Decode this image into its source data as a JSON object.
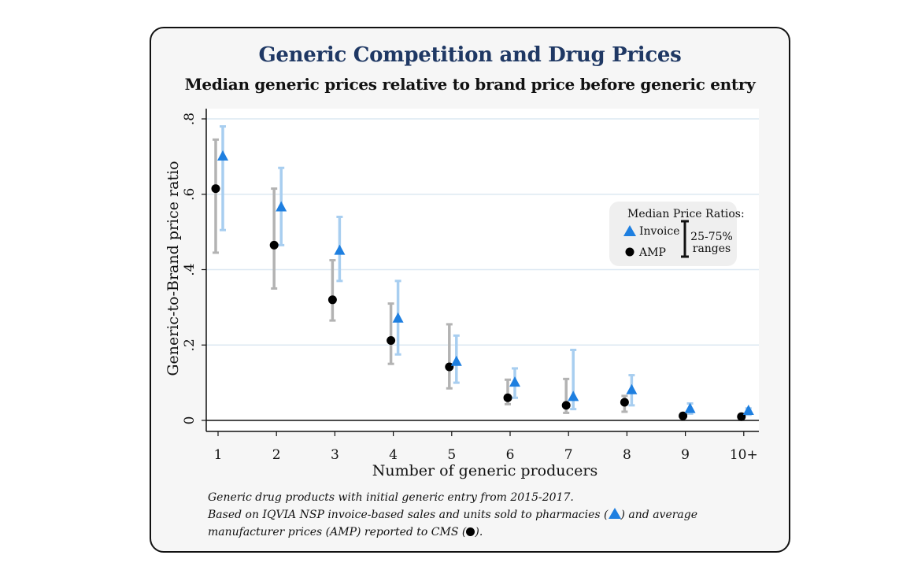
{
  "chart_data": {
    "type": "scatter",
    "title": "Generic Competition and Drug Prices",
    "subtitle": "Median generic prices relative to brand price before generic entry",
    "xlabel": "Number of generic producers",
    "ylabel": "Generic-to-Brand price ratio",
    "categories": [
      "1",
      "2",
      "3",
      "4",
      "5",
      "6",
      "7",
      "8",
      "9",
      "10+"
    ],
    "ylim": [
      0,
      0.8
    ],
    "yticks": [
      0,
      0.2,
      0.4,
      0.6,
      0.8
    ],
    "ytick_labels": [
      "0",
      ".2",
      ".4",
      ".6",
      ".8"
    ],
    "grid": true,
    "series": [
      {
        "name": "Invoice",
        "marker": "triangle",
        "color": "#1e7fe0",
        "bar_color": "#a8cef0",
        "values": [
          0.7,
          0.565,
          0.45,
          0.27,
          0.155,
          0.1,
          0.062,
          0.08,
          0.03,
          0.025
        ],
        "q25": [
          0.505,
          0.465,
          0.37,
          0.175,
          0.1,
          0.06,
          0.03,
          0.04,
          0.018,
          0.015
        ],
        "q75": [
          0.78,
          0.67,
          0.54,
          0.37,
          0.225,
          0.138,
          0.187,
          0.12,
          0.045,
          0.032
        ]
      },
      {
        "name": "AMP",
        "marker": "circle",
        "color": "#000000",
        "bar_color": "#b3b3b3",
        "values": [
          0.615,
          0.465,
          0.32,
          0.212,
          0.142,
          0.06,
          0.04,
          0.048,
          0.012,
          0.01
        ],
        "q25": [
          0.445,
          0.35,
          0.265,
          0.15,
          0.085,
          0.043,
          0.02,
          0.023,
          0.006,
          0.005
        ],
        "q75": [
          0.745,
          0.615,
          0.425,
          0.31,
          0.255,
          0.108,
          0.11,
          0.065,
          0.018,
          0.015
        ]
      }
    ],
    "legend": {
      "title": "Median Price Ratios:",
      "items": [
        "Invoice",
        "AMP"
      ],
      "range_label_1": "25-75%",
      "range_label_2": "ranges",
      "placement": "right"
    }
  },
  "notes": {
    "line1": "Generic drug products with initial generic entry from 2015-2017.",
    "line2a": "Based on IQVIA NSP invoice-based sales and units sold to pharmacies (",
    "line2b": ") and average",
    "line3a": "manufacturer prices (AMP) reported to CMS (",
    "line3b": ")."
  }
}
